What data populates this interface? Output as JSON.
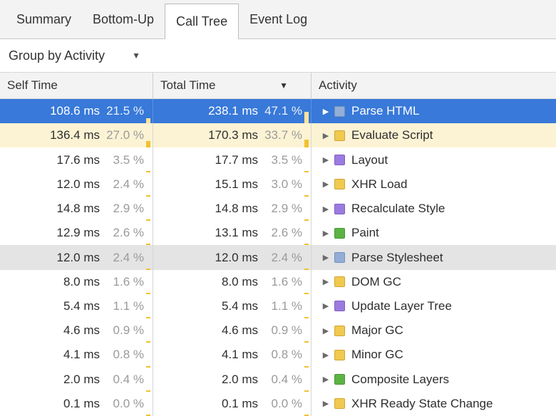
{
  "tabs": [
    {
      "label": "Summary",
      "selected": false
    },
    {
      "label": "Bottom-Up",
      "selected": false
    },
    {
      "label": "Call Tree",
      "selected": true
    },
    {
      "label": "Event Log",
      "selected": false
    }
  ],
  "toolbar": {
    "group_by_label": "Group by Activity"
  },
  "icons": {
    "dropdown": "▼",
    "sort": "▼",
    "expand": "▶"
  },
  "table": {
    "columns": {
      "self": "Self Time",
      "total": "Total Time",
      "activity": "Activity"
    },
    "sort": {
      "column": "Total Time",
      "direction": "desc"
    },
    "rows": [
      {
        "self_ms": "108.6 ms",
        "self_pct": "21.5 %",
        "self_pct_value": 21.5,
        "total_ms": "238.1 ms",
        "total_pct": "47.1 %",
        "total_pct_value": 47.1,
        "activity": "Parse HTML",
        "category": "loading",
        "state": "selected"
      },
      {
        "self_ms": "136.4 ms",
        "self_pct": "27.0 %",
        "self_pct_value": 27.0,
        "total_ms": "170.3 ms",
        "total_pct": "33.7 %",
        "total_pct_value": 33.7,
        "activity": "Evaluate Script",
        "category": "scripting",
        "state": "highlight"
      },
      {
        "self_ms": "17.6 ms",
        "self_pct": "3.5 %",
        "self_pct_value": 3.5,
        "total_ms": "17.7 ms",
        "total_pct": "3.5 %",
        "total_pct_value": 3.5,
        "activity": "Layout",
        "category": "rendering",
        "state": ""
      },
      {
        "self_ms": "12.0 ms",
        "self_pct": "2.4 %",
        "self_pct_value": 2.4,
        "total_ms": "15.1 ms",
        "total_pct": "3.0 %",
        "total_pct_value": 3.0,
        "activity": "XHR Load",
        "category": "scripting",
        "state": ""
      },
      {
        "self_ms": "14.8 ms",
        "self_pct": "2.9 %",
        "self_pct_value": 2.9,
        "total_ms": "14.8 ms",
        "total_pct": "2.9 %",
        "total_pct_value": 2.9,
        "activity": "Recalculate Style",
        "category": "rendering",
        "state": ""
      },
      {
        "self_ms": "12.9 ms",
        "self_pct": "2.6 %",
        "self_pct_value": 2.6,
        "total_ms": "13.1 ms",
        "total_pct": "2.6 %",
        "total_pct_value": 2.6,
        "activity": "Paint",
        "category": "painting",
        "state": ""
      },
      {
        "self_ms": "12.0 ms",
        "self_pct": "2.4 %",
        "self_pct_value": 2.4,
        "total_ms": "12.0 ms",
        "total_pct": "2.4 %",
        "total_pct_value": 2.4,
        "activity": "Parse Stylesheet",
        "category": "loading",
        "state": "hover"
      },
      {
        "self_ms": "8.0 ms",
        "self_pct": "1.6 %",
        "self_pct_value": 1.6,
        "total_ms": "8.0 ms",
        "total_pct": "1.6 %",
        "total_pct_value": 1.6,
        "activity": "DOM GC",
        "category": "scripting",
        "state": ""
      },
      {
        "self_ms": "5.4 ms",
        "self_pct": "1.1 %",
        "self_pct_value": 1.1,
        "total_ms": "5.4 ms",
        "total_pct": "1.1 %",
        "total_pct_value": 1.1,
        "activity": "Update Layer Tree",
        "category": "rendering",
        "state": ""
      },
      {
        "self_ms": "4.6 ms",
        "self_pct": "0.9 %",
        "self_pct_value": 0.9,
        "total_ms": "4.6 ms",
        "total_pct": "0.9 %",
        "total_pct_value": 0.9,
        "activity": "Major GC",
        "category": "scripting",
        "state": ""
      },
      {
        "self_ms": "4.1 ms",
        "self_pct": "0.8 %",
        "self_pct_value": 0.8,
        "total_ms": "4.1 ms",
        "total_pct": "0.8 %",
        "total_pct_value": 0.8,
        "activity": "Minor GC",
        "category": "scripting",
        "state": ""
      },
      {
        "self_ms": "2.0 ms",
        "self_pct": "0.4 %",
        "self_pct_value": 0.4,
        "total_ms": "2.0 ms",
        "total_pct": "0.4 %",
        "total_pct_value": 0.4,
        "activity": "Composite Layers",
        "category": "painting",
        "state": ""
      },
      {
        "self_ms": "0.1 ms",
        "self_pct": "0.0 %",
        "self_pct_value": 0.0,
        "total_ms": "0.1 ms",
        "total_pct": "0.0 %",
        "total_pct_value": 0.0,
        "activity": "XHR Ready State Change",
        "category": "scripting",
        "state": ""
      }
    ]
  },
  "category_colors": {
    "loading": {
      "fill": "#93aed6",
      "border": "#7392bd"
    },
    "scripting": {
      "fill": "#f0c94f",
      "border": "#d0a634"
    },
    "rendering": {
      "fill": "#9c7be0",
      "border": "#7f5fc2"
    },
    "painting": {
      "fill": "#5cb344",
      "border": "#499637"
    }
  },
  "colors": {
    "selection_bg": "#3879d9",
    "selection_text": "#ffffff",
    "highlight_row_bg": "#fcf3d4",
    "hover_row_bg": "#e4e4e4",
    "pct_bar": "#f0c230",
    "pct_text": "#9a9a9a"
  }
}
